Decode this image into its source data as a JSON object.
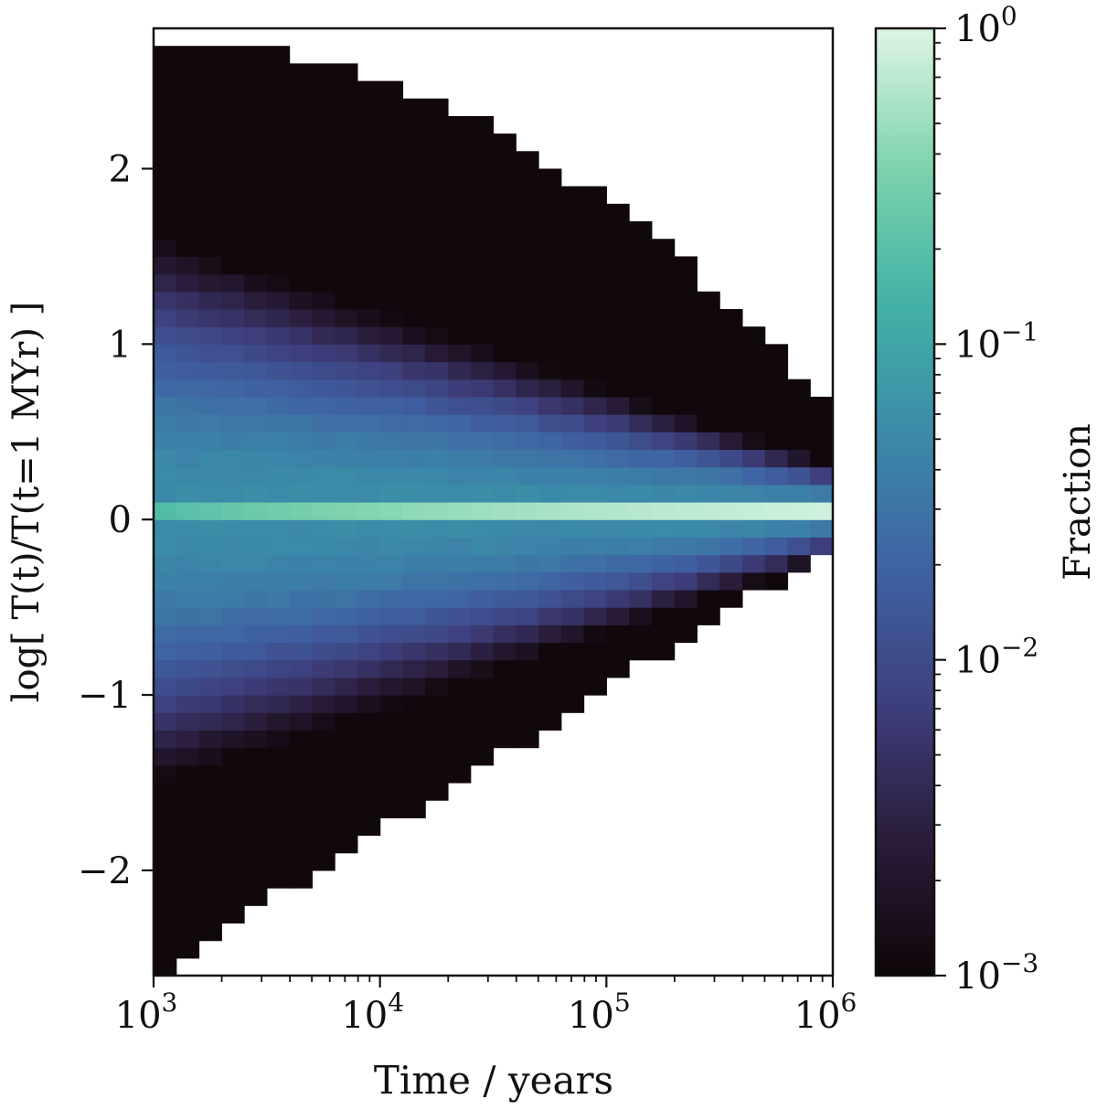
{
  "chart_data": {
    "type": "heatmap",
    "xlabel": "Time / years",
    "ylabel": "log[ T(t)/T(t=1 MYr) ]",
    "x_scale": "log",
    "xlim": [
      1000,
      1000000
    ],
    "ylim": [
      -2.6,
      2.8
    ],
    "x_ticks": [
      {
        "value": 1000,
        "base": "10",
        "exp": "3"
      },
      {
        "value": 10000,
        "base": "10",
        "exp": "4"
      },
      {
        "value": 100000,
        "base": "10",
        "exp": "5"
      },
      {
        "value": 1000000,
        "base": "10",
        "exp": "6"
      }
    ],
    "y_ticks": [
      {
        "value": -2,
        "label": "−2"
      },
      {
        "value": -1,
        "label": "−1"
      },
      {
        "value": 0,
        "label": "0"
      },
      {
        "value": 1,
        "label": "1"
      },
      {
        "value": 2,
        "label": "2"
      }
    ],
    "x_bins": {
      "count": 30,
      "log_start": 3,
      "log_step": 0.1
    },
    "y_bins": {
      "count": 54,
      "start": -2.6,
      "step": 0.1
    },
    "cell_model": {
      "description_note": "fraction per bin, approximated",
      "peak_row_value_start": 0.18,
      "peak_row_value_end": 0.85
    },
    "colorbar": {
      "label": "Fraction",
      "scale": "log",
      "range": [
        0.001,
        1
      ],
      "ticks": [
        {
          "value": 1,
          "base": "10",
          "exp": "0"
        },
        {
          "value": 0.1,
          "base": "10",
          "exp": "−1"
        },
        {
          "value": 0.01,
          "base": "10",
          "exp": "−2"
        },
        {
          "value": 0.001,
          "base": "10",
          "exp": "−3"
        }
      ],
      "colors": [
        "#0e0608",
        "#2a1c3a",
        "#3e3f7d",
        "#3f62a3",
        "#3b8aa8",
        "#43b3a6",
        "#7fd4ad",
        "#def5e5"
      ]
    }
  }
}
